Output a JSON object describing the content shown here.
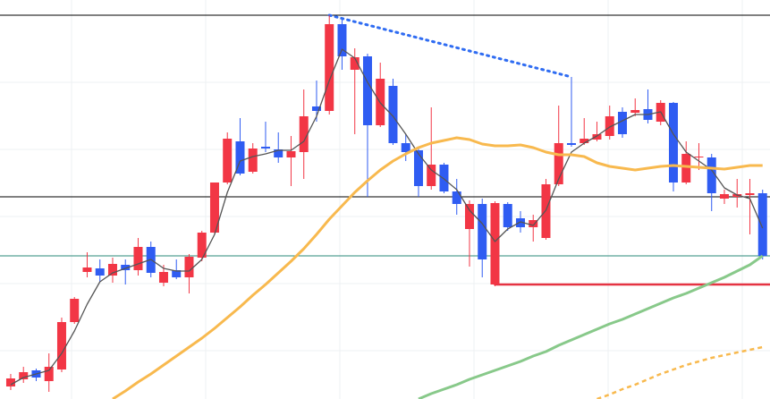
{
  "chart_data": {
    "type": "candlestick",
    "up_color": "#f23645",
    "down_color": "#2f5cf2",
    "xlim": [
      0.16,
      60.58
    ],
    "ylim": [
      0,
      446
    ],
    "x": [
      1,
      2,
      3,
      4,
      5,
      6,
      7,
      8,
      9,
      10,
      11,
      12,
      13,
      14,
      15,
      16,
      17,
      18,
      19,
      20,
      21,
      22,
      23,
      24,
      25,
      26,
      27,
      28,
      29,
      30,
      31,
      32,
      33,
      34,
      35,
      36,
      37,
      38,
      39,
      40,
      41,
      42,
      43,
      44,
      45,
      46,
      47,
      48,
      49,
      50,
      51,
      52,
      53,
      54,
      55,
      56,
      57,
      58,
      59,
      60
    ],
    "open": [
      14,
      22,
      32,
      20,
      33,
      86,
      142,
      146,
      138,
      150,
      144,
      170,
      130,
      144,
      136,
      158,
      186,
      242,
      288,
      254,
      282,
      279,
      270,
      276,
      327,
      322,
      419,
      368,
      383,
      306,
      350,
      286,
      278,
      238,
      262,
      232,
      190,
      218,
      128,
      218,
      202,
      192,
      180,
      240,
      286,
      286,
      290,
      294,
      321,
      320,
      324,
      310,
      331,
      242,
      270,
      270,
      224,
      226,
      228,
      230
    ],
    "high": [
      28,
      36,
      34,
      51,
      91,
      114,
      164,
      156,
      158,
      156,
      180,
      176,
      150,
      156,
      162,
      188,
      242,
      298,
      314,
      286,
      310,
      298,
      294,
      346,
      356,
      429,
      424,
      392,
      386,
      376,
      358,
      296,
      280,
      326,
      264,
      246,
      222,
      224,
      221,
      220,
      210,
      206,
      246,
      328,
      360,
      314,
      310,
      328,
      326,
      336,
      346,
      334,
      332,
      288,
      286,
      274,
      234,
      246,
      246,
      234
    ],
    "low": [
      10,
      18,
      20,
      8,
      30,
      84,
      136,
      131,
      130,
      128,
      138,
      136,
      126,
      134,
      118,
      154,
      184,
      240,
      250,
      252,
      276,
      264,
      238,
      246,
      310,
      318,
      368,
      296,
      226,
      304,
      284,
      266,
      226,
      234,
      230,
      206,
      148,
      136,
      126,
      188,
      186,
      176,
      178,
      238,
      282,
      284,
      288,
      290,
      292,
      316,
      308,
      306,
      232,
      240,
      256,
      210,
      218,
      214,
      184,
      156
    ],
    "close": [
      23,
      30,
      24,
      36,
      86,
      112,
      147,
      138,
      151,
      144,
      170,
      141,
      142,
      136,
      159,
      186,
      242,
      291,
      252,
      280,
      280,
      270,
      277,
      316,
      322,
      419,
      383,
      382,
      306,
      358,
      286,
      276,
      238,
      262,
      232,
      218,
      218,
      156,
      219,
      192,
      192,
      200,
      240,
      286,
      284,
      291,
      296,
      316,
      296,
      323,
      312,
      331,
      242,
      274,
      271,
      230,
      229,
      229,
      230,
      160
    ],
    "lines": [
      {
        "color": "#555555",
        "width": 1.3,
        "dashed": false,
        "values": [
          16,
          24,
          28,
          32,
          51,
          76,
          106,
          131,
          141,
          146,
          151,
          156,
          146,
          143,
          143,
          156,
          184,
          231,
          266,
          271,
          274,
          278,
          278,
          288,
          316,
          356,
          391,
          381,
          354,
          331,
          316,
          296,
          274,
          256,
          246,
          234,
          211,
          196,
          176,
          190,
          198,
          194,
          211,
          246,
          276,
          286,
          294,
          304,
          311,
          318,
          318,
          321,
          296,
          276,
          266,
          256,
          236,
          228,
          224,
          191
        ]
      },
      {
        "color": "#f8b94e",
        "width": 3,
        "dashed": false,
        "values": [
          null,
          null,
          null,
          null,
          null,
          null,
          null,
          null,
          0,
          9,
          19,
          28,
          38,
          48,
          58,
          68,
          79,
          91,
          103,
          116,
          128,
          141,
          154,
          168,
          184,
          201,
          216,
          231,
          244,
          256,
          266,
          274,
          281,
          286,
          289,
          292,
          290,
          285,
          283,
          283,
          284,
          281,
          276,
          273,
          273,
          271,
          264,
          260,
          258,
          256,
          258,
          260,
          261,
          260,
          259,
          258,
          257,
          259,
          261,
          261
        ]
      },
      {
        "color": "#88c98a",
        "width": 3,
        "dashed": false,
        "values": [
          null,
          null,
          null,
          null,
          null,
          null,
          null,
          null,
          null,
          null,
          null,
          null,
          null,
          null,
          null,
          null,
          null,
          null,
          null,
          null,
          null,
          null,
          null,
          null,
          null,
          null,
          null,
          null,
          null,
          null,
          null,
          null,
          0,
          6,
          11,
          16,
          22,
          27,
          32,
          37,
          42,
          48,
          53,
          60,
          66,
          72,
          78,
          84,
          89,
          95,
          101,
          107,
          113,
          118,
          124,
          130,
          136,
          143,
          150,
          160
        ]
      },
      {
        "color": "#f8b94e",
        "width": 2.5,
        "dashed": true,
        "values": [
          null,
          null,
          null,
          null,
          null,
          null,
          null,
          null,
          null,
          null,
          null,
          null,
          null,
          null,
          null,
          null,
          null,
          null,
          null,
          null,
          null,
          null,
          null,
          null,
          null,
          null,
          null,
          null,
          null,
          null,
          null,
          null,
          null,
          null,
          null,
          null,
          null,
          null,
          null,
          null,
          null,
          null,
          null,
          null,
          null,
          null,
          0,
          5,
          11,
          16,
          22,
          28,
          33,
          38,
          42,
          46,
          49,
          52,
          55,
          58
        ]
      }
    ],
    "hlines": [
      {
        "value": 429,
        "color": "#000000"
      },
      {
        "value": 226,
        "color": "#000000"
      },
      {
        "value": 160,
        "color": "#2a8a7a"
      }
    ],
    "segments": [
      {
        "x": [
          39,
          60.58
        ],
        "values": [
          128,
          128
        ],
        "color": "#e53343",
        "width": 2.5,
        "dashed": false
      },
      {
        "x": [
          26,
          45
        ],
        "values": [
          429,
          360
        ],
        "color": "#2f6cf2",
        "width": 3,
        "dashed": true
      }
    ]
  }
}
